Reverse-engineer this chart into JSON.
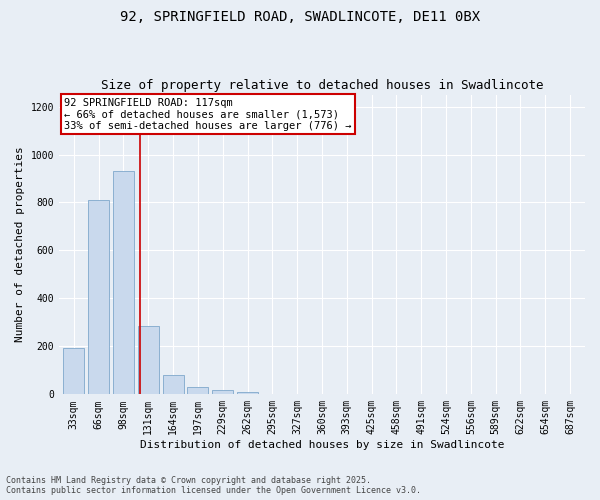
{
  "title1": "92, SPRINGFIELD ROAD, SWADLINCOTE, DE11 0BX",
  "title2": "Size of property relative to detached houses in Swadlincote",
  "xlabel": "Distribution of detached houses by size in Swadlincote",
  "ylabel": "Number of detached properties",
  "categories": [
    "33sqm",
    "66sqm",
    "98sqm",
    "131sqm",
    "164sqm",
    "197sqm",
    "229sqm",
    "262sqm",
    "295sqm",
    "327sqm",
    "360sqm",
    "393sqm",
    "425sqm",
    "458sqm",
    "491sqm",
    "524sqm",
    "556sqm",
    "589sqm",
    "622sqm",
    "654sqm",
    "687sqm"
  ],
  "values": [
    195,
    810,
    930,
    285,
    80,
    30,
    18,
    8,
    3,
    0,
    0,
    0,
    0,
    0,
    0,
    0,
    0,
    0,
    0,
    0,
    0
  ],
  "bar_color": "#c9d9ed",
  "bar_edgecolor": "#7fa8cc",
  "vline_x": 2.65,
  "vline_color": "#cc0000",
  "annotation_text": "92 SPRINGFIELD ROAD: 117sqm\n← 66% of detached houses are smaller (1,573)\n33% of semi-detached houses are larger (776) →",
  "annotation_box_color": "#ffffff",
  "annotation_box_edgecolor": "#cc0000",
  "ylim": [
    0,
    1250
  ],
  "yticks": [
    0,
    200,
    400,
    600,
    800,
    1000,
    1200
  ],
  "background_color": "#e8eef5",
  "plot_bg_color": "#e8eef5",
  "footer": "Contains HM Land Registry data © Crown copyright and database right 2025.\nContains public sector information licensed under the Open Government Licence v3.0.",
  "title_fontsize": 10,
  "subtitle_fontsize": 9,
  "tick_fontsize": 7,
  "label_fontsize": 8,
  "annotation_fontsize": 7.5,
  "footer_fontsize": 6
}
